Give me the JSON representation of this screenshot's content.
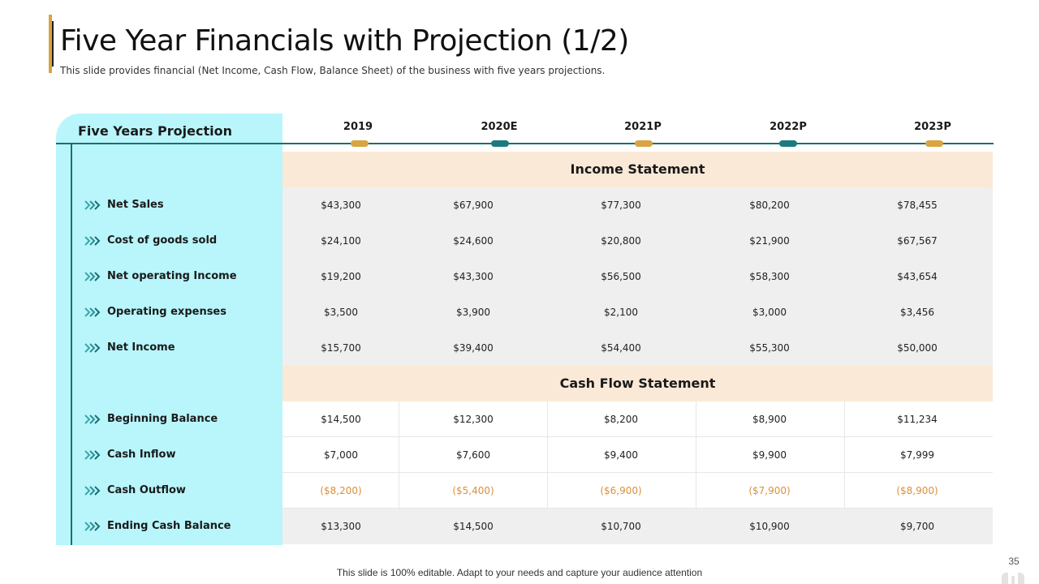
{
  "header": {
    "title": "Five Year Financials with Projection (1/2)",
    "subtitle": "This slide provides financial (Net Income, Cash Flow, Balance Sheet) of the business with five years projections."
  },
  "projection_label": "Five Years Projection",
  "years": [
    "2019",
    "2020E",
    "2021P",
    "2022P",
    "2023P"
  ],
  "colors": {
    "accent_orange": "#d9a441",
    "accent_teal": "#1b7a7e",
    "panel_cyan": "#b8f6fb",
    "section_peach": "#fbe9d7",
    "negative": "#d9913a"
  },
  "income_statement": {
    "title": "Income Statement",
    "rows": [
      {
        "label": "Net Sales",
        "values": [
          "$43,300",
          "$67,900",
          "$77,300",
          "$80,200",
          "$78,455"
        ]
      },
      {
        "label": "Cost of goods sold",
        "values": [
          "$24,100",
          "$24,600",
          "$20,800",
          "$21,900",
          "$67,567"
        ]
      },
      {
        "label": "Net operating Income",
        "values": [
          "$19,200",
          "$43,300",
          "$56,500",
          "$58,300",
          "$43,654"
        ]
      },
      {
        "label": "Operating expenses",
        "values": [
          "$3,500",
          "$3,900",
          "$2,100",
          "$3,000",
          "$3,456"
        ]
      },
      {
        "label": "Net Income",
        "values": [
          "$15,700",
          "$39,400",
          "$54,400",
          "$55,300",
          "$50,000"
        ]
      }
    ]
  },
  "cash_flow_statement": {
    "title": "Cash Flow Statement",
    "rows": [
      {
        "label": "Beginning Balance",
        "values": [
          "$14,500",
          "$12,300",
          "$8,200",
          "$8,900",
          "$11,234"
        ]
      },
      {
        "label": "Cash Inflow",
        "values": [
          "$7,000",
          "$7,600",
          "$9,400",
          "$9,900",
          "$7,999"
        ]
      },
      {
        "label": "Cash Outflow",
        "values": [
          "($8,200)",
          "($5,400)",
          "($6,900)",
          "($7,900)",
          "($8,900)"
        ]
      },
      {
        "label": "Ending Cash Balance",
        "values": [
          "$13,300",
          "$14,500",
          "$10,700",
          "$10,900",
          "$9,700"
        ]
      }
    ]
  },
  "footer": {
    "text": "This slide is 100% editable. Adapt to your needs and capture your audience attention",
    "page_number": "35"
  }
}
